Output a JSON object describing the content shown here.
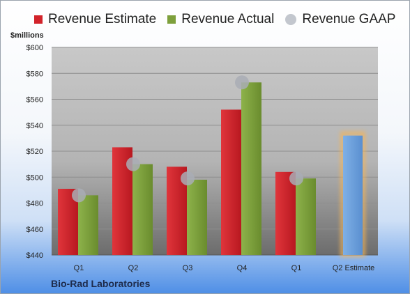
{
  "chart_data": {
    "type": "bar",
    "unit_label": "$millions",
    "categories": [
      "Q1",
      "Q2",
      "Q3",
      "Q4",
      "Q1",
      "Q2 Estimate"
    ],
    "series": [
      {
        "name": "Revenue Estimate",
        "color": "#d2232a",
        "values": [
          491,
          523,
          508,
          552,
          504,
          null
        ]
      },
      {
        "name": "Revenue Actual",
        "color": "#7ea03c",
        "values": [
          486,
          510,
          498,
          573,
          499,
          null
        ]
      },
      {
        "name": "Revenue GAAP",
        "color": "#b8bcc4",
        "marker": "circle",
        "values": [
          486,
          510,
          499,
          573,
          499,
          null
        ]
      }
    ],
    "forecast": {
      "category": "Q2 Estimate",
      "value": 532,
      "color": "#6a9ed8",
      "glow": "#f2b45a"
    },
    "ylim": [
      440,
      600
    ],
    "yticks": [
      "$440",
      "$460",
      "$480",
      "$500",
      "$520",
      "$540",
      "$560",
      "$580",
      "$600"
    ],
    "ytick_values": [
      440,
      460,
      480,
      500,
      520,
      540,
      560,
      580,
      600
    ],
    "grid": true,
    "legend_position": "top",
    "company": "Bio-Rad Laboratories"
  }
}
